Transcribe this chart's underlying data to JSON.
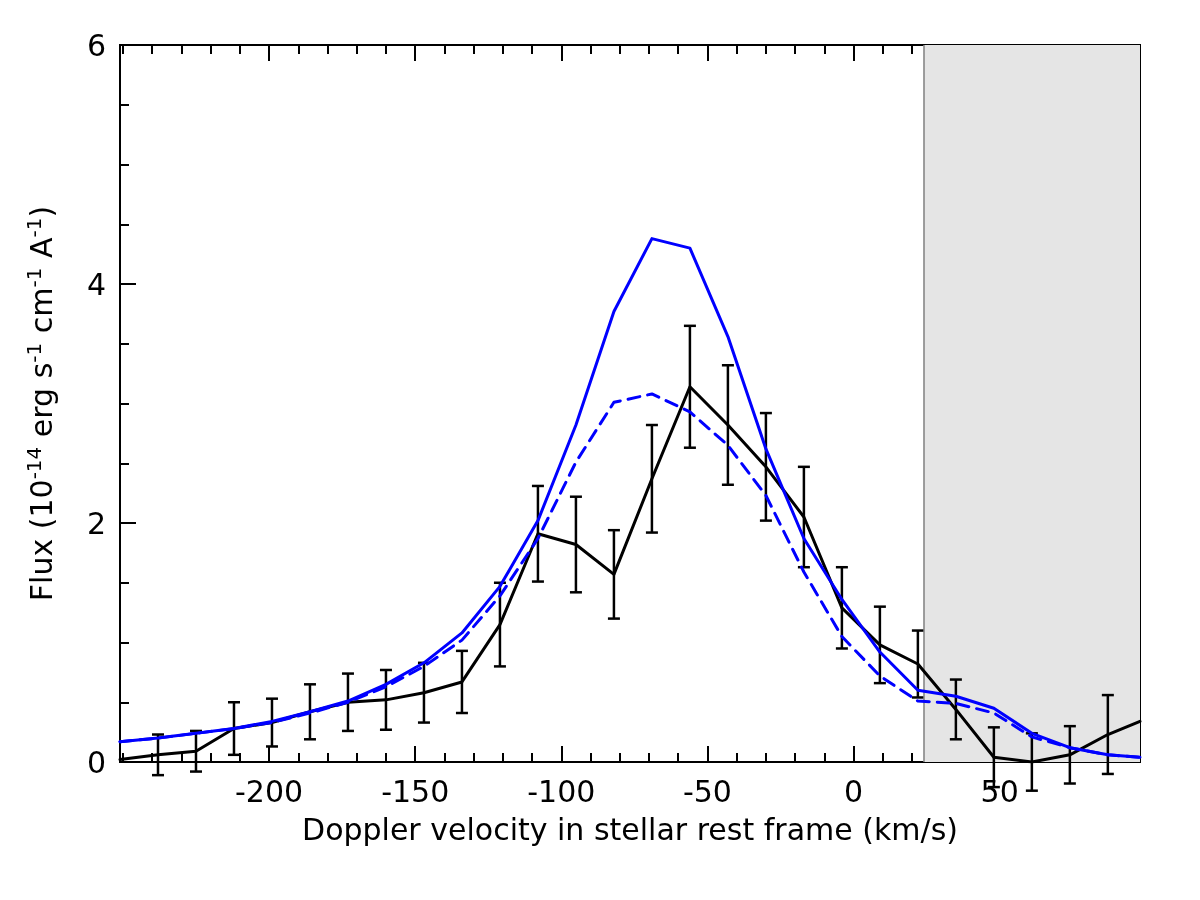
{
  "chart_data": {
    "type": "line",
    "xlabel": "Doppler velocity in stellar rest frame (km/s)",
    "ylabel": "Flux (10$^{-14}$ erg s$^{-1}$ cm$^{-1}$ A$^{-1}$)",
    "x": [
      -251,
      -238,
      -225,
      -212,
      -199,
      -186,
      -173,
      -160,
      -147,
      -134,
      -121,
      -108,
      -95,
      -82,
      -69,
      -56,
      -43,
      -30,
      -17,
      -4,
      9,
      22,
      35,
      48,
      61,
      74,
      87,
      98
    ],
    "series": [
      {
        "color": "#000000",
        "line_style": "solid",
        "values": [
          0.02,
          0.06,
          0.09,
          0.28,
          0.33,
          0.42,
          0.5,
          0.52,
          0.58,
          0.67,
          1.15,
          1.91,
          1.82,
          1.57,
          2.37,
          3.14,
          2.82,
          2.47,
          2.05,
          1.29,
          0.98,
          0.82,
          0.44,
          0.04,
          0,
          0.06,
          0.23,
          0.34
        ],
        "errors": [
          null,
          0.17,
          0.17,
          0.22,
          0.2,
          0.23,
          0.24,
          0.25,
          0.25,
          0.26,
          0.35,
          0.4,
          0.4,
          0.37,
          0.45,
          0.51,
          0.5,
          0.45,
          0.42,
          0.34,
          0.32,
          0.28,
          0.25,
          0.25,
          0.24,
          0.24,
          0.33,
          null
        ]
      },
      {
        "color": "#0000ff",
        "line_style": "solid",
        "values": [
          0.17,
          0.2,
          0.24,
          0.28,
          0.34,
          0.42,
          0.51,
          0.65,
          0.83,
          1.08,
          1.47,
          2.02,
          2.82,
          3.77,
          4.38,
          4.3,
          3.56,
          2.62,
          1.87,
          1.36,
          0.92,
          0.6,
          0.55,
          0.45,
          0.24,
          0.12,
          0.06,
          0.04
        ]
      },
      {
        "color": "#0000ff",
        "line_style": "dashed",
        "values": [
          0.17,
          0.2,
          0.24,
          0.28,
          0.33,
          0.41,
          0.5,
          0.63,
          0.8,
          1.02,
          1.39,
          1.87,
          2.51,
          3.01,
          3.08,
          2.93,
          2.65,
          2.23,
          1.59,
          1.05,
          0.72,
          0.51,
          0.49,
          0.41,
          0.21,
          0.12,
          0.06,
          0.04
        ]
      }
    ],
    "xlim": [
      -251,
      98
    ],
    "xticks": [
      -200,
      -150,
      -100,
      -50,
      0,
      50
    ],
    "ylim": [
      0,
      6
    ],
    "yticks": [
      0,
      2,
      4,
      6
    ],
    "bands": [
      {
        "axis": "x",
        "from": 24,
        "to": 98,
        "color": "#e5e5e5"
      }
    ],
    "ref_lines": [
      {
        "axis": "x",
        "value": 24,
        "color": "#808080"
      }
    ],
    "grid": false,
    "marker": "none"
  }
}
